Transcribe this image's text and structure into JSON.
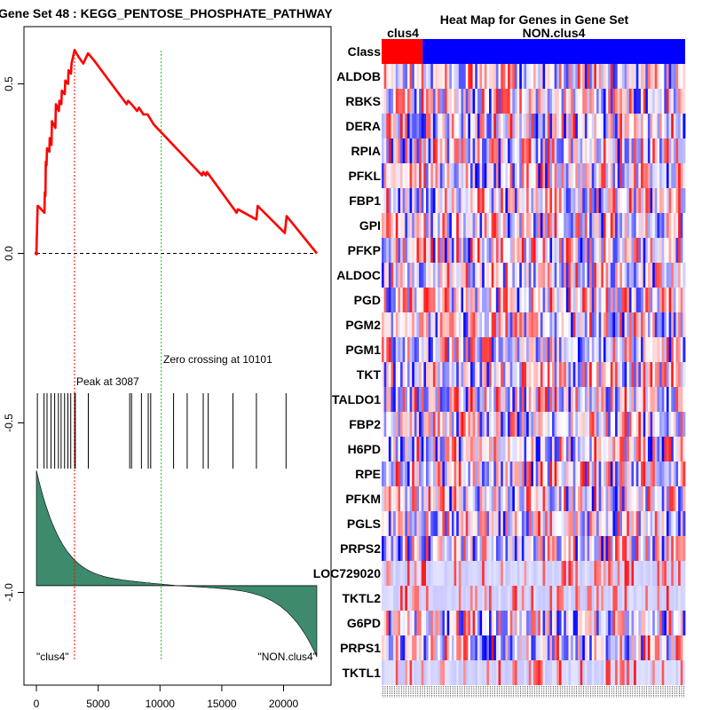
{
  "chart_data": [
    {
      "type": "line",
      "title": "Gene Set  48 : KEGG_PENTOSE_PHOSPHATE_PATHWAY",
      "xlim": [
        0,
        22690
      ],
      "ylim": [
        -1.25,
        0.65
      ],
      "x_ticks": [
        0,
        5000,
        10000,
        15000,
        20000
      ],
      "y_ticks": [
        -1.0,
        -0.5,
        0.0,
        0.5
      ],
      "x_tick_labels": [
        "0",
        "5000",
        "10000",
        "15000",
        "20000"
      ],
      "y_tick_labels": [
        "-1.0",
        "-0.5",
        "0.0",
        "0.5"
      ],
      "enrichment_series": {
        "name": "running enrichment score",
        "color": "#ff0000",
        "x": [
          0,
          100,
          130,
          650,
          680,
          730,
          760,
          820,
          860,
          1050,
          1080,
          1220,
          1260,
          1540,
          1580,
          1820,
          1860,
          2020,
          2060,
          2300,
          2340,
          2560,
          2600,
          2800,
          2840,
          3087,
          3400,
          3800,
          4180,
          4650,
          7300,
          7420,
          7700,
          8150,
          8300,
          8650,
          9000,
          9500,
          13400,
          13500,
          13700,
          13800,
          16200,
          16300,
          17800,
          17900,
          20100,
          20250,
          22690
        ],
        "y": [
          0.0,
          0.14,
          0.14,
          0.12,
          0.18,
          0.17,
          0.27,
          0.26,
          0.31,
          0.3,
          0.34,
          0.32,
          0.39,
          0.37,
          0.44,
          0.42,
          0.45,
          0.44,
          0.48,
          0.47,
          0.51,
          0.5,
          0.54,
          0.53,
          0.56,
          0.6,
          0.58,
          0.56,
          0.59,
          0.57,
          0.44,
          0.45,
          0.44,
          0.42,
          0.43,
          0.41,
          0.41,
          0.38,
          0.23,
          0.24,
          0.23,
          0.24,
          0.12,
          0.13,
          0.1,
          0.14,
          0.06,
          0.11,
          0.0
        ]
      },
      "baseline": {
        "value": 0.0,
        "style": "dashed",
        "color": "#000000"
      },
      "peak": {
        "x": 3087,
        "label": "Peak at 3087",
        "color": "#ff0000",
        "style": "dotted"
      },
      "zero_crossing": {
        "x": 10101,
        "label": "Zero crossing at 10101",
        "color": "#00cc00",
        "style": "dotted"
      },
      "hit_positions": [
        80,
        620,
        860,
        1180,
        1480,
        1780,
        2000,
        2280,
        2550,
        2780,
        3087,
        3150,
        4200,
        7550,
        7700,
        8500,
        9050,
        9250,
        11100,
        12200,
        13500,
        13900,
        15900,
        17800,
        20200
      ],
      "ranked_metric": {
        "fill_color": "#3d8a6c",
        "top_value": -0.64,
        "bottom_value": -1.19,
        "baseline_value": -0.98
      },
      "annotations": [
        "\"clus4\"",
        "\"NON.clus4\""
      ]
    },
    {
      "type": "heatmap",
      "title": "Heat Map for Genes in Gene Set",
      "class_row_label": "Class",
      "class_groups": [
        {
          "name": "clus4",
          "color": "#ff0000",
          "fraction": 0.135
        },
        {
          "name": "NON.clus4",
          "color": "#0000ff",
          "fraction": 0.865
        }
      ],
      "genes": [
        "ALDOB",
        "RBKS",
        "DERA",
        "RPIA",
        "PFKL",
        "FBP1",
        "GPI",
        "PFKP",
        "ALDOC",
        "PGD",
        "PGM2",
        "PGM1",
        "TKT",
        "TALDO1",
        "FBP2",
        "H6PD",
        "RPE",
        "PFKM",
        "PGLS",
        "PRPS2",
        "LOC729020",
        "TKTL2",
        "G6PD",
        "PRPS1",
        "TKTL1"
      ],
      "sample_count": 130,
      "values_note": "cell intensities are noise-like red/blue expression values; rendered procedurally"
    }
  ]
}
